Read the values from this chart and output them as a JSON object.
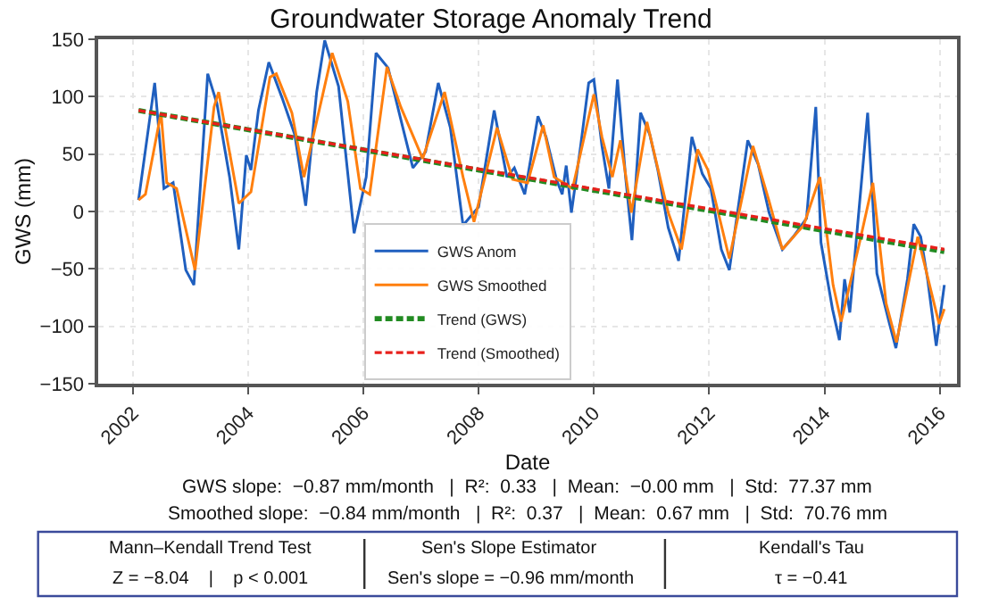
{
  "chart_data": {
    "type": "line",
    "title": "Groundwater Storage Anomaly Trend",
    "xlabel": "Date",
    "ylabel": "GWS (mm)",
    "xlim": [
      2001.4,
      2016.3
    ],
    "xticks": [
      2002,
      2004,
      2006,
      2008,
      2010,
      2012,
      2014,
      2016
    ],
    "ylim": [
      -150,
      150
    ],
    "yticks": [
      -150,
      -100,
      -50,
      0,
      50,
      100,
      150
    ],
    "grid": true,
    "legend": "bottom",
    "marker": "none",
    "series": [
      {
        "name": "GWS Anom",
        "color": "#1f5fbf",
        "line_style": "solid",
        "x": [
          2002.1,
          2002.38,
          2002.54,
          2002.7,
          2002.92,
          2003.06,
          2003.3,
          2003.46,
          2003.68,
          2003.84,
          2003.97,
          2004.05,
          2004.18,
          2004.36,
          2004.59,
          2004.81,
          2005.0,
          2005.19,
          2005.33,
          2005.57,
          2005.84,
          2006.05,
          2006.22,
          2006.43,
          2006.7,
          2006.86,
          2007.08,
          2007.3,
          2007.51,
          2007.73,
          2008.0,
          2008.27,
          2008.49,
          2008.62,
          2008.8,
          2009.03,
          2009.17,
          2009.35,
          2009.45,
          2009.52,
          2009.61,
          2009.77,
          2009.91,
          2010.0,
          2010.14,
          2010.26,
          2010.41,
          2010.55,
          2010.66,
          2010.81,
          2010.97,
          2011.11,
          2011.29,
          2011.47,
          2011.7,
          2011.88,
          2012.03,
          2012.21,
          2012.35,
          2012.67,
          2012.85,
          2013.04,
          2013.27,
          2013.46,
          2013.69,
          2013.85,
          2013.94,
          2014.14,
          2014.26,
          2014.35,
          2014.44,
          2014.75,
          2014.91,
          2015.12,
          2015.24,
          2015.44,
          2015.55,
          2015.67,
          2015.79,
          2015.94,
          2016.08
        ],
        "values": [
          10,
          112,
          20,
          25,
          -51,
          -64,
          120,
          94,
          30,
          -33,
          49,
          36,
          88,
          130,
          99,
          67,
          5,
          104,
          149,
          109,
          -19,
          30,
          138,
          125,
          70,
          38,
          52,
          112,
          73,
          -12,
          4,
          88,
          30,
          38,
          15,
          83,
          65,
          28,
          15,
          40,
          -1,
          57,
          112,
          115,
          57,
          20,
          115,
          30,
          -25,
          86,
          67,
          36,
          -14,
          -43,
          65,
          33,
          20,
          -33,
          -51,
          62,
          41,
          -1,
          -33,
          -22,
          -6,
          91,
          -27,
          -85,
          -112,
          -59,
          -88,
          86,
          -54,
          -96,
          -119,
          -59,
          -11,
          -22,
          -59,
          -117,
          -64
        ]
      },
      {
        "name": "GWS Smoothed",
        "color": "#ff7f0e",
        "line_style": "solid",
        "x": [
          2002.1,
          2002.22,
          2002.49,
          2002.59,
          2002.76,
          2003.08,
          2003.41,
          2003.49,
          2003.84,
          2004.05,
          2004.38,
          2004.49,
          2004.76,
          2004.97,
          2005.46,
          2005.73,
          2005.95,
          2006.11,
          2006.41,
          2006.65,
          2007.03,
          2007.41,
          2007.73,
          2007.92,
          2008.32,
          2008.59,
          2008.85,
          2009.12,
          2009.31,
          2009.63,
          2010.0,
          2010.14,
          2010.32,
          2010.46,
          2010.65,
          2010.92,
          2011.29,
          2011.52,
          2011.8,
          2011.98,
          2012.35,
          2012.76,
          2013.04,
          2013.27,
          2013.64,
          2013.92,
          2014.15,
          2014.29,
          2014.61,
          2014.84,
          2015.07,
          2015.25,
          2015.62,
          2015.99,
          2016.08
        ],
        "values": [
          10,
          15,
          86,
          25,
          20,
          -51,
          91,
          104,
          7,
          17,
          117,
          120,
          86,
          30,
          138,
          96,
          20,
          15,
          126,
          91,
          46,
          104,
          30,
          -9,
          73,
          28,
          25,
          75,
          30,
          20,
          102,
          65,
          30,
          62,
          -1,
          78,
          -1,
          -33,
          54,
          36,
          -41,
          57,
          9,
          -33,
          -12,
          30,
          -64,
          -96,
          -27,
          25,
          -80,
          -114,
          -22,
          -98,
          -85
        ]
      },
      {
        "name": "Trend (GWS)",
        "color": "#228b22",
        "line_style": "dashed",
        "x": [
          2002.1,
          2016.08
        ],
        "values": [
          88,
          -35
        ]
      },
      {
        "name": "Trend (Smoothed)",
        "color": "#e8201c",
        "line_style": "dashed",
        "x": [
          2002.1,
          2016.08
        ],
        "values": [
          88,
          -33
        ]
      }
    ],
    "annotations": [
      "GWS slope:  −0.87 mm/month   |  R²:  0.33   |  Mean:  −0.00 mm   |  Std:  77.37 mm",
      "Smoothed slope:  −0.84 mm/month   |  R²:  0.37   |  Mean:  0.67 mm   |  Std:  70.76 mm",
      "Mann–Kendall Trend Test",
      "Z = −8.04    |    p < 0.001",
      "Sen's Slope Estimator",
      "Sen's slope = −0.96 mm/month",
      "Kendall's Tau",
      "τ = −0.41"
    ]
  }
}
